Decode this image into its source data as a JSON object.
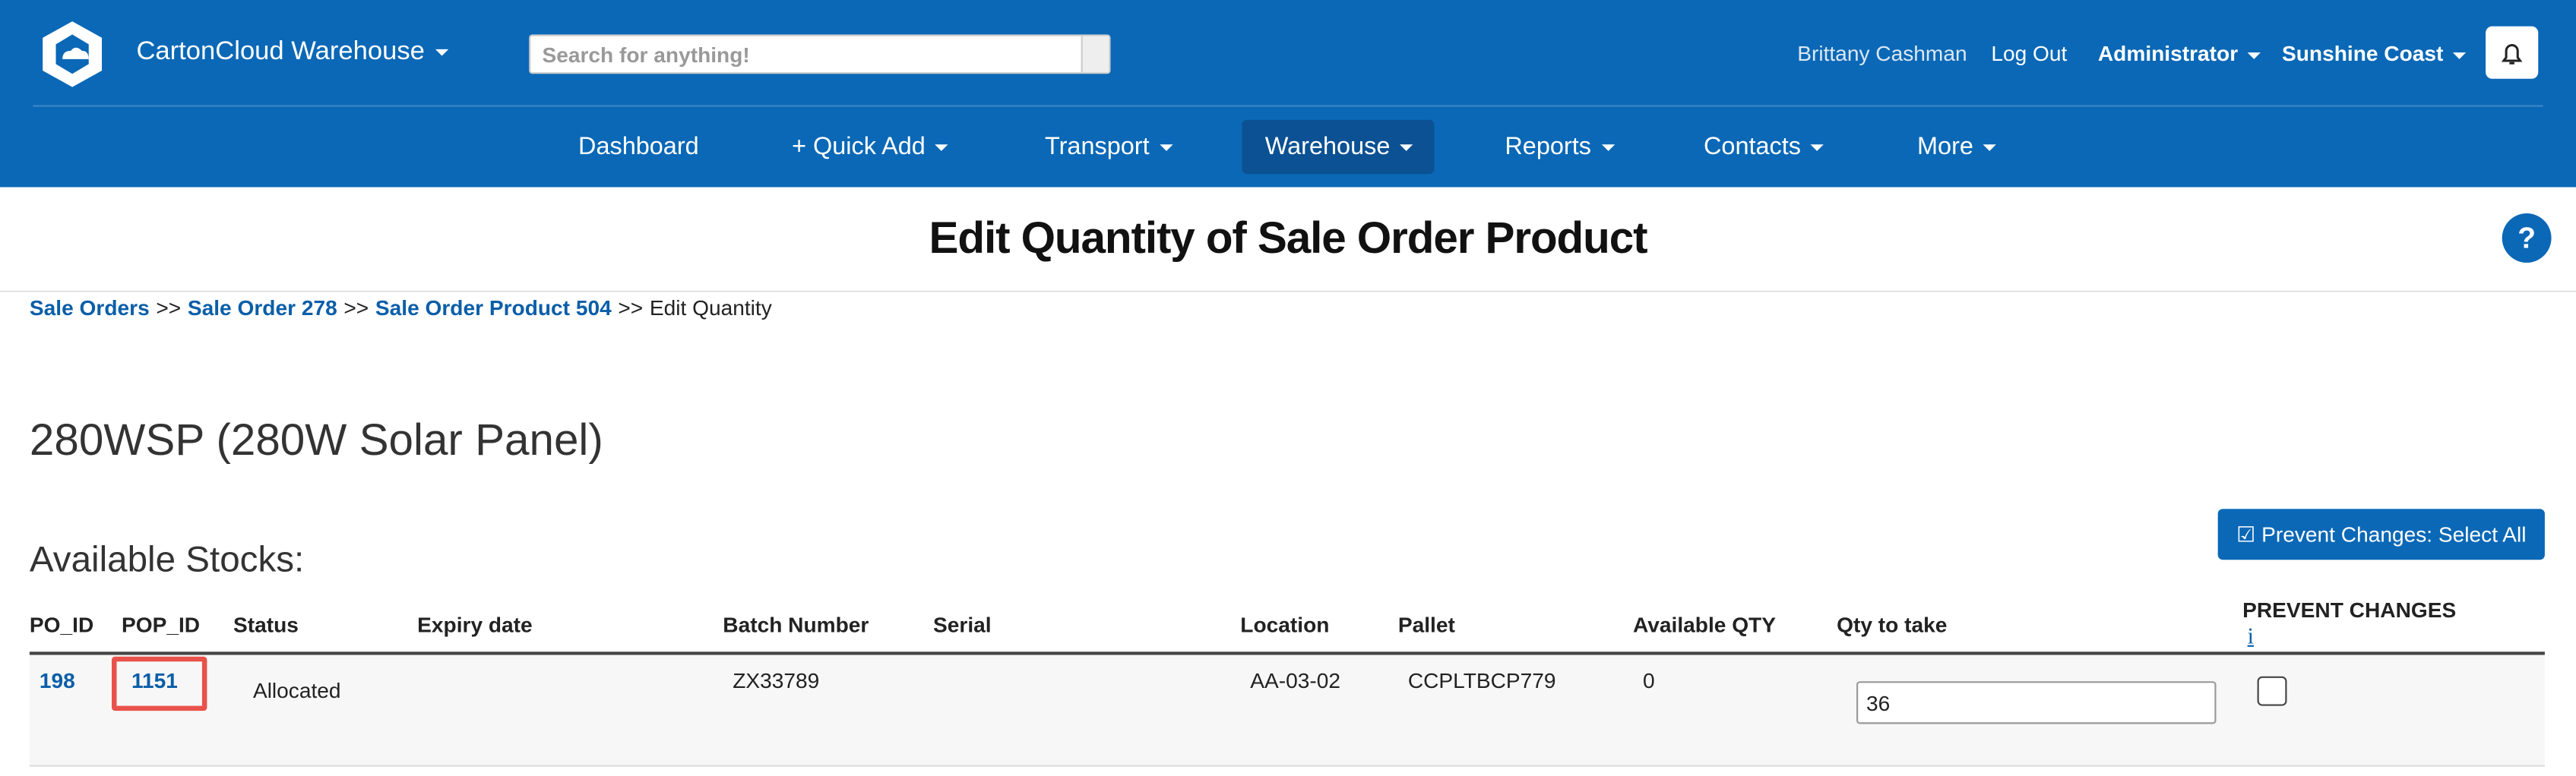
{
  "header": {
    "brand": "CartonCloud Warehouse",
    "search_placeholder": "Search for anything!",
    "user": "Brittany Cashman",
    "logout": "Log Out",
    "role": "Administrator",
    "location": "Sunshine Coast"
  },
  "nav": [
    "Dashboard",
    "+ Quick Add",
    "Transport",
    "Warehouse",
    "Reports",
    "Contacts",
    "More"
  ],
  "page_title": "Edit Quantity of Sale Order Product",
  "breadcrumbs": {
    "links": [
      "Sale Orders",
      "Sale Order 278",
      "Sale Order Product 504"
    ],
    "separator": ">>",
    "current": "Edit Quantity"
  },
  "product_title": "280WSP (280W Solar Panel)",
  "section_title": "Available Stocks:",
  "button": "Prevent Changes: Select All",
  "table": {
    "headers": [
      "PO_ID",
      "POP_ID",
      "Status",
      "Expiry date",
      "Batch Number",
      "Serial",
      "Location",
      "Pallet",
      "Available QTY",
      "Qty to take",
      "PREVENT CHANGES"
    ],
    "info": "i",
    "rows": [
      [
        "198",
        "1151",
        "Allocated",
        "",
        "ZX33789",
        "",
        "AA-03-02",
        "CCPLTBCP779",
        "0",
        "36"
      ]
    ]
  }
}
